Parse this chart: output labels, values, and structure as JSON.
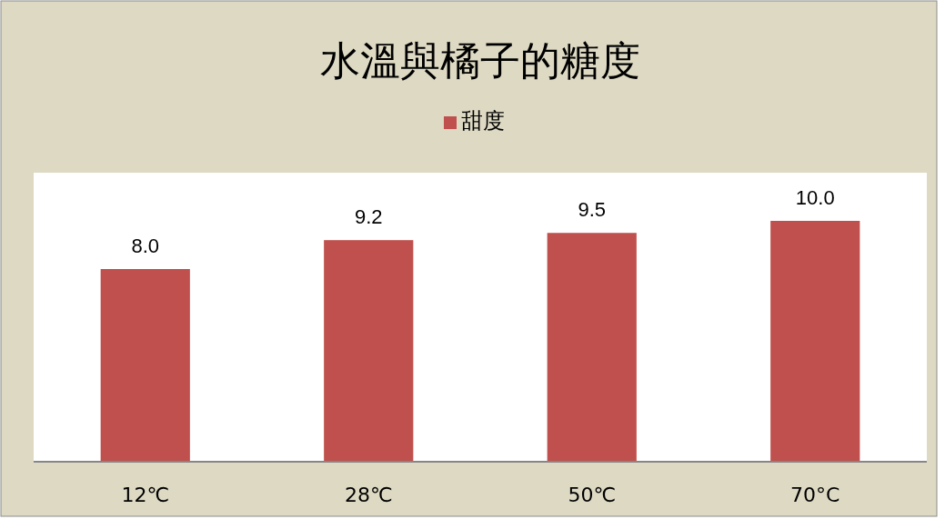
{
  "chart_data": {
    "type": "bar",
    "title": "水溫與橘子的糖度",
    "categories": [
      "12℃",
      "28℃",
      "50℃",
      "70°C"
    ],
    "series": [
      {
        "name": "甜度",
        "color": "#c0504d",
        "values": [
          8.0,
          9.2,
          9.5,
          10.0
        ],
        "value_labels": [
          "8.0",
          "9.2",
          "9.5",
          "10.0"
        ]
      }
    ],
    "ylim": [
      0,
      12
    ],
    "legend": "top"
  }
}
